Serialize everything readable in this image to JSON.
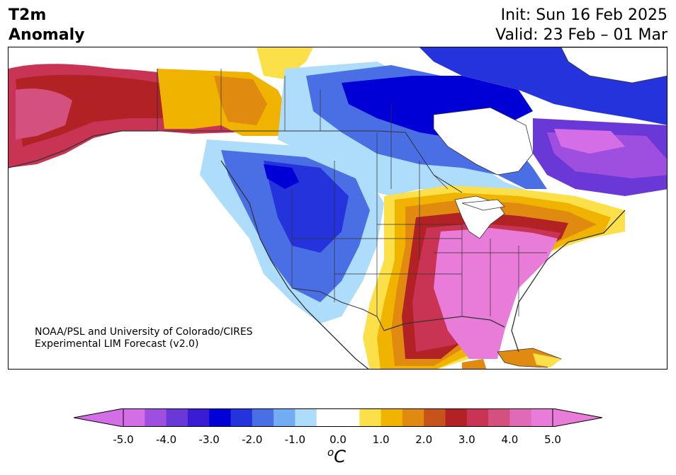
{
  "header": {
    "title_line1": "T2m",
    "title_line2": "Anomaly",
    "init": "Init: Sun 16 Feb 2025",
    "valid": "Valid: 23 Feb – 01 Mar"
  },
  "credit": {
    "line1": "NOAA/PSL and University of Colorado/CIRES",
    "line2": "Experimental LIM Forecast (v2.0)"
  },
  "colorbar": {
    "unit_base": "C",
    "unit_sup": "o",
    "tick_labels": [
      "-5.0",
      "-4.0",
      "-3.0",
      "-2.0",
      "-1.0",
      "0.0",
      "1.0",
      "2.0",
      "3.0",
      "4.0",
      "5.0"
    ],
    "bin_colors": [
      "#d46ee6",
      "#9f4fdf",
      "#6b38d8",
      "#3a1cd4",
      "#0000d6",
      "#2433dc",
      "#4a6ee4",
      "#72acf2",
      "#aedcfb",
      "#ffffff",
      "#ffffff",
      "#fbe04a",
      "#f0b400",
      "#e08a10",
      "#c6531a",
      "#b22124",
      "#c93454",
      "#d4507e",
      "#e06ab8",
      "#e87cd8"
    ]
  },
  "map": {
    "anomaly_colors": {
      "strong_cold": "#0000d6",
      "cold": "#2433dc",
      "moderate_cold": "#4a6ee4",
      "cool": "#72acf2",
      "slightly_cool": "#aedcfb",
      "neutral": "#ffffff",
      "slightly_warm": "#fbe04a",
      "warm": "#f0b400",
      "moderate_warm": "#e08a10",
      "hot": "#b22124",
      "very_hot": "#c93454",
      "extreme": "#e87cd8",
      "purple_cold": "#9f4fdf"
    }
  }
}
